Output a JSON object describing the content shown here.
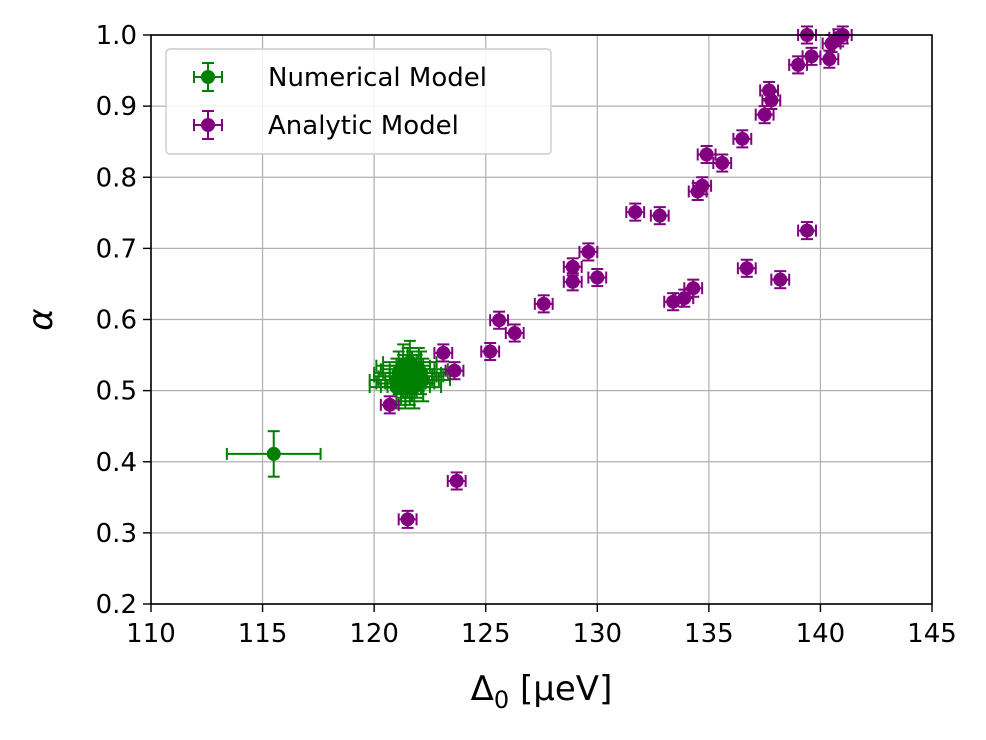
{
  "chart_data": {
    "type": "scatter",
    "xlabel_main": "Δ",
    "xlabel_sub": "0",
    "xlabel_unit": " [μeV]",
    "ylabel": "α",
    "xlim": [
      110,
      145
    ],
    "ylim": [
      0.2,
      1.0
    ],
    "xticks": [
      110,
      115,
      120,
      125,
      130,
      135,
      140,
      145
    ],
    "yticks": [
      0.2,
      0.3,
      0.4,
      0.5,
      0.6,
      0.7,
      0.8,
      0.9,
      1.0
    ],
    "xtick_labels": [
      "110",
      "115",
      "120",
      "125",
      "130",
      "135",
      "140",
      "145"
    ],
    "ytick_labels": [
      "0.2",
      "0.3",
      "0.4",
      "0.5",
      "0.6",
      "0.7",
      "0.8",
      "0.9",
      "1.0"
    ],
    "grid": true,
    "legend_position": "top-left",
    "series": [
      {
        "name": "Numerical Model",
        "color": "#008000",
        "points": [
          {
            "x": 115.5,
            "y": 0.411,
            "xerr": 2.1,
            "yerr": 0.032
          },
          {
            "x": 121.0,
            "y": 0.505,
            "xerr": 1.2,
            "yerr": 0.03
          },
          {
            "x": 121.3,
            "y": 0.52,
            "xerr": 1.3,
            "yerr": 0.03
          },
          {
            "x": 121.5,
            "y": 0.53,
            "xerr": 1.2,
            "yerr": 0.03
          },
          {
            "x": 121.2,
            "y": 0.51,
            "xerr": 1.1,
            "yerr": 0.03
          },
          {
            "x": 121.7,
            "y": 0.525,
            "xerr": 1.3,
            "yerr": 0.03
          },
          {
            "x": 121.4,
            "y": 0.515,
            "xerr": 1.2,
            "yerr": 0.03
          },
          {
            "x": 121.9,
            "y": 0.52,
            "xerr": 1.2,
            "yerr": 0.03
          },
          {
            "x": 121.6,
            "y": 0.51,
            "xerr": 1.1,
            "yerr": 0.03
          },
          {
            "x": 122.0,
            "y": 0.53,
            "xerr": 1.3,
            "yerr": 0.03
          },
          {
            "x": 121.3,
            "y": 0.535,
            "xerr": 1.2,
            "yerr": 0.03
          },
          {
            "x": 121.8,
            "y": 0.505,
            "xerr": 1.2,
            "yerr": 0.03
          },
          {
            "x": 121.1,
            "y": 0.525,
            "xerr": 1.1,
            "yerr": 0.03
          },
          {
            "x": 122.2,
            "y": 0.515,
            "xerr": 1.2,
            "yerr": 0.03
          },
          {
            "x": 121.5,
            "y": 0.52,
            "xerr": 1.3,
            "yerr": 0.03
          },
          {
            "x": 121.6,
            "y": 0.54,
            "xerr": 1.2,
            "yerr": 0.03
          },
          {
            "x": 121.0,
            "y": 0.515,
            "xerr": 1.2,
            "yerr": 0.03
          },
          {
            "x": 122.1,
            "y": 0.525,
            "xerr": 1.2,
            "yerr": 0.03
          },
          {
            "x": 121.4,
            "y": 0.505,
            "xerr": 1.1,
            "yerr": 0.03
          },
          {
            "x": 121.7,
            "y": 0.515,
            "xerr": 1.2,
            "yerr": 0.03
          }
        ]
      },
      {
        "name": "Analytic Model",
        "color": "#800080",
        "points": [
          {
            "x": 120.7,
            "y": 0.48,
            "xerr": 0.4,
            "yerr": 0.012
          },
          {
            "x": 121.5,
            "y": 0.319,
            "xerr": 0.4,
            "yerr": 0.012
          },
          {
            "x": 123.1,
            "y": 0.553,
            "xerr": 0.4,
            "yerr": 0.012
          },
          {
            "x": 123.6,
            "y": 0.528,
            "xerr": 0.4,
            "yerr": 0.012
          },
          {
            "x": 123.7,
            "y": 0.373,
            "xerr": 0.4,
            "yerr": 0.012
          },
          {
            "x": 125.2,
            "y": 0.555,
            "xerr": 0.4,
            "yerr": 0.012
          },
          {
            "x": 125.6,
            "y": 0.599,
            "xerr": 0.4,
            "yerr": 0.012
          },
          {
            "x": 126.3,
            "y": 0.581,
            "xerr": 0.4,
            "yerr": 0.012
          },
          {
            "x": 127.6,
            "y": 0.622,
            "xerr": 0.4,
            "yerr": 0.012
          },
          {
            "x": 128.9,
            "y": 0.674,
            "xerr": 0.4,
            "yerr": 0.012
          },
          {
            "x": 128.9,
            "y": 0.653,
            "xerr": 0.4,
            "yerr": 0.012
          },
          {
            "x": 129.6,
            "y": 0.695,
            "xerr": 0.4,
            "yerr": 0.012
          },
          {
            "x": 130.0,
            "y": 0.659,
            "xerr": 0.4,
            "yerr": 0.012
          },
          {
            "x": 131.7,
            "y": 0.751,
            "xerr": 0.4,
            "yerr": 0.012
          },
          {
            "x": 132.8,
            "y": 0.746,
            "xerr": 0.4,
            "yerr": 0.012
          },
          {
            "x": 133.4,
            "y": 0.625,
            "xerr": 0.4,
            "yerr": 0.012
          },
          {
            "x": 133.9,
            "y": 0.63,
            "xerr": 0.4,
            "yerr": 0.012
          },
          {
            "x": 134.3,
            "y": 0.644,
            "xerr": 0.4,
            "yerr": 0.012
          },
          {
            "x": 134.5,
            "y": 0.78,
            "xerr": 0.4,
            "yerr": 0.012
          },
          {
            "x": 134.7,
            "y": 0.788,
            "xerr": 0.4,
            "yerr": 0.012
          },
          {
            "x": 134.9,
            "y": 0.832,
            "xerr": 0.4,
            "yerr": 0.012
          },
          {
            "x": 135.6,
            "y": 0.82,
            "xerr": 0.4,
            "yerr": 0.012
          },
          {
            "x": 136.5,
            "y": 0.854,
            "xerr": 0.4,
            "yerr": 0.012
          },
          {
            "x": 136.7,
            "y": 0.672,
            "xerr": 0.4,
            "yerr": 0.012
          },
          {
            "x": 137.5,
            "y": 0.888,
            "xerr": 0.4,
            "yerr": 0.012
          },
          {
            "x": 137.7,
            "y": 0.922,
            "xerr": 0.4,
            "yerr": 0.012
          },
          {
            "x": 137.8,
            "y": 0.908,
            "xerr": 0.4,
            "yerr": 0.012
          },
          {
            "x": 138.2,
            "y": 0.656,
            "xerr": 0.4,
            "yerr": 0.012
          },
          {
            "x": 139.0,
            "y": 0.958,
            "xerr": 0.4,
            "yerr": 0.012
          },
          {
            "x": 139.4,
            "y": 0.725,
            "xerr": 0.4,
            "yerr": 0.012
          },
          {
            "x": 139.4,
            "y": 1.0,
            "xerr": 0.4,
            "yerr": 0.012
          },
          {
            "x": 139.6,
            "y": 0.97,
            "xerr": 0.4,
            "yerr": 0.012
          },
          {
            "x": 140.4,
            "y": 0.966,
            "xerr": 0.4,
            "yerr": 0.012
          },
          {
            "x": 140.5,
            "y": 0.988,
            "xerr": 0.4,
            "yerr": 0.012
          },
          {
            "x": 140.8,
            "y": 0.996,
            "xerr": 0.4,
            "yerr": 0.012
          },
          {
            "x": 141.0,
            "y": 1.0,
            "xerr": 0.4,
            "yerr": 0.012
          }
        ]
      }
    ]
  }
}
